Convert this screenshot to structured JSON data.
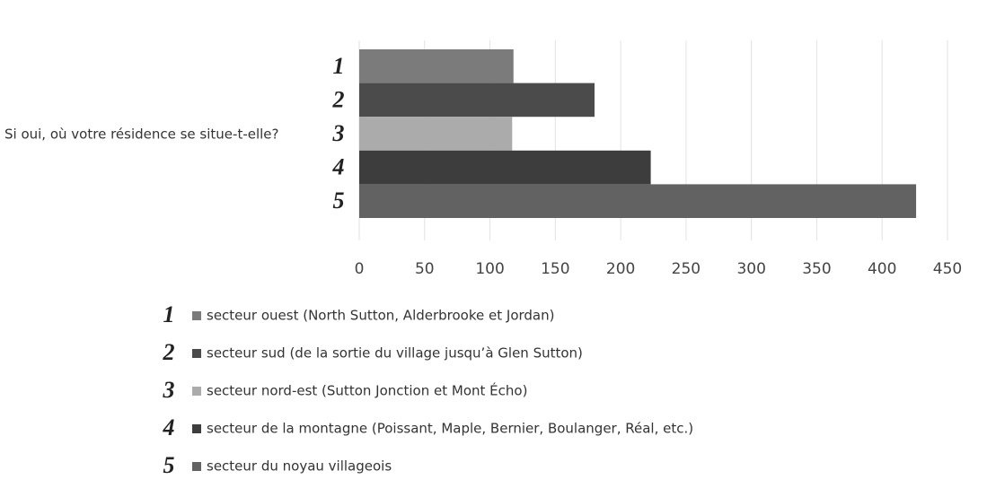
{
  "chart_data": {
    "type": "barh",
    "y_label": "Si oui, où votre résidence se situe-t-elle?",
    "categories": [
      "1",
      "2",
      "3",
      "4",
      "5"
    ],
    "values": [
      118,
      180,
      117,
      223,
      426
    ],
    "colors": [
      "#7b7b7b",
      "#4b4b4b",
      "#ababab",
      "#3d3d3d",
      "#626262"
    ],
    "legend": [
      "secteur ouest (North Sutton, Alderbrooke et Jordan)",
      "secteur sud (de la sortie du village jusqu’à Glen Sutton)",
      "secteur nord-est (Sutton Jonction et Mont Écho)",
      "secteur de la montagne (Poissant, Maple, Bernier, Boulanger, Réal, etc.)",
      "secteur du noyau villageois"
    ],
    "xlim": [
      0,
      450
    ],
    "xticks": [
      0,
      50,
      100,
      150,
      200,
      250,
      300,
      350,
      400,
      450
    ],
    "grid": true
  }
}
